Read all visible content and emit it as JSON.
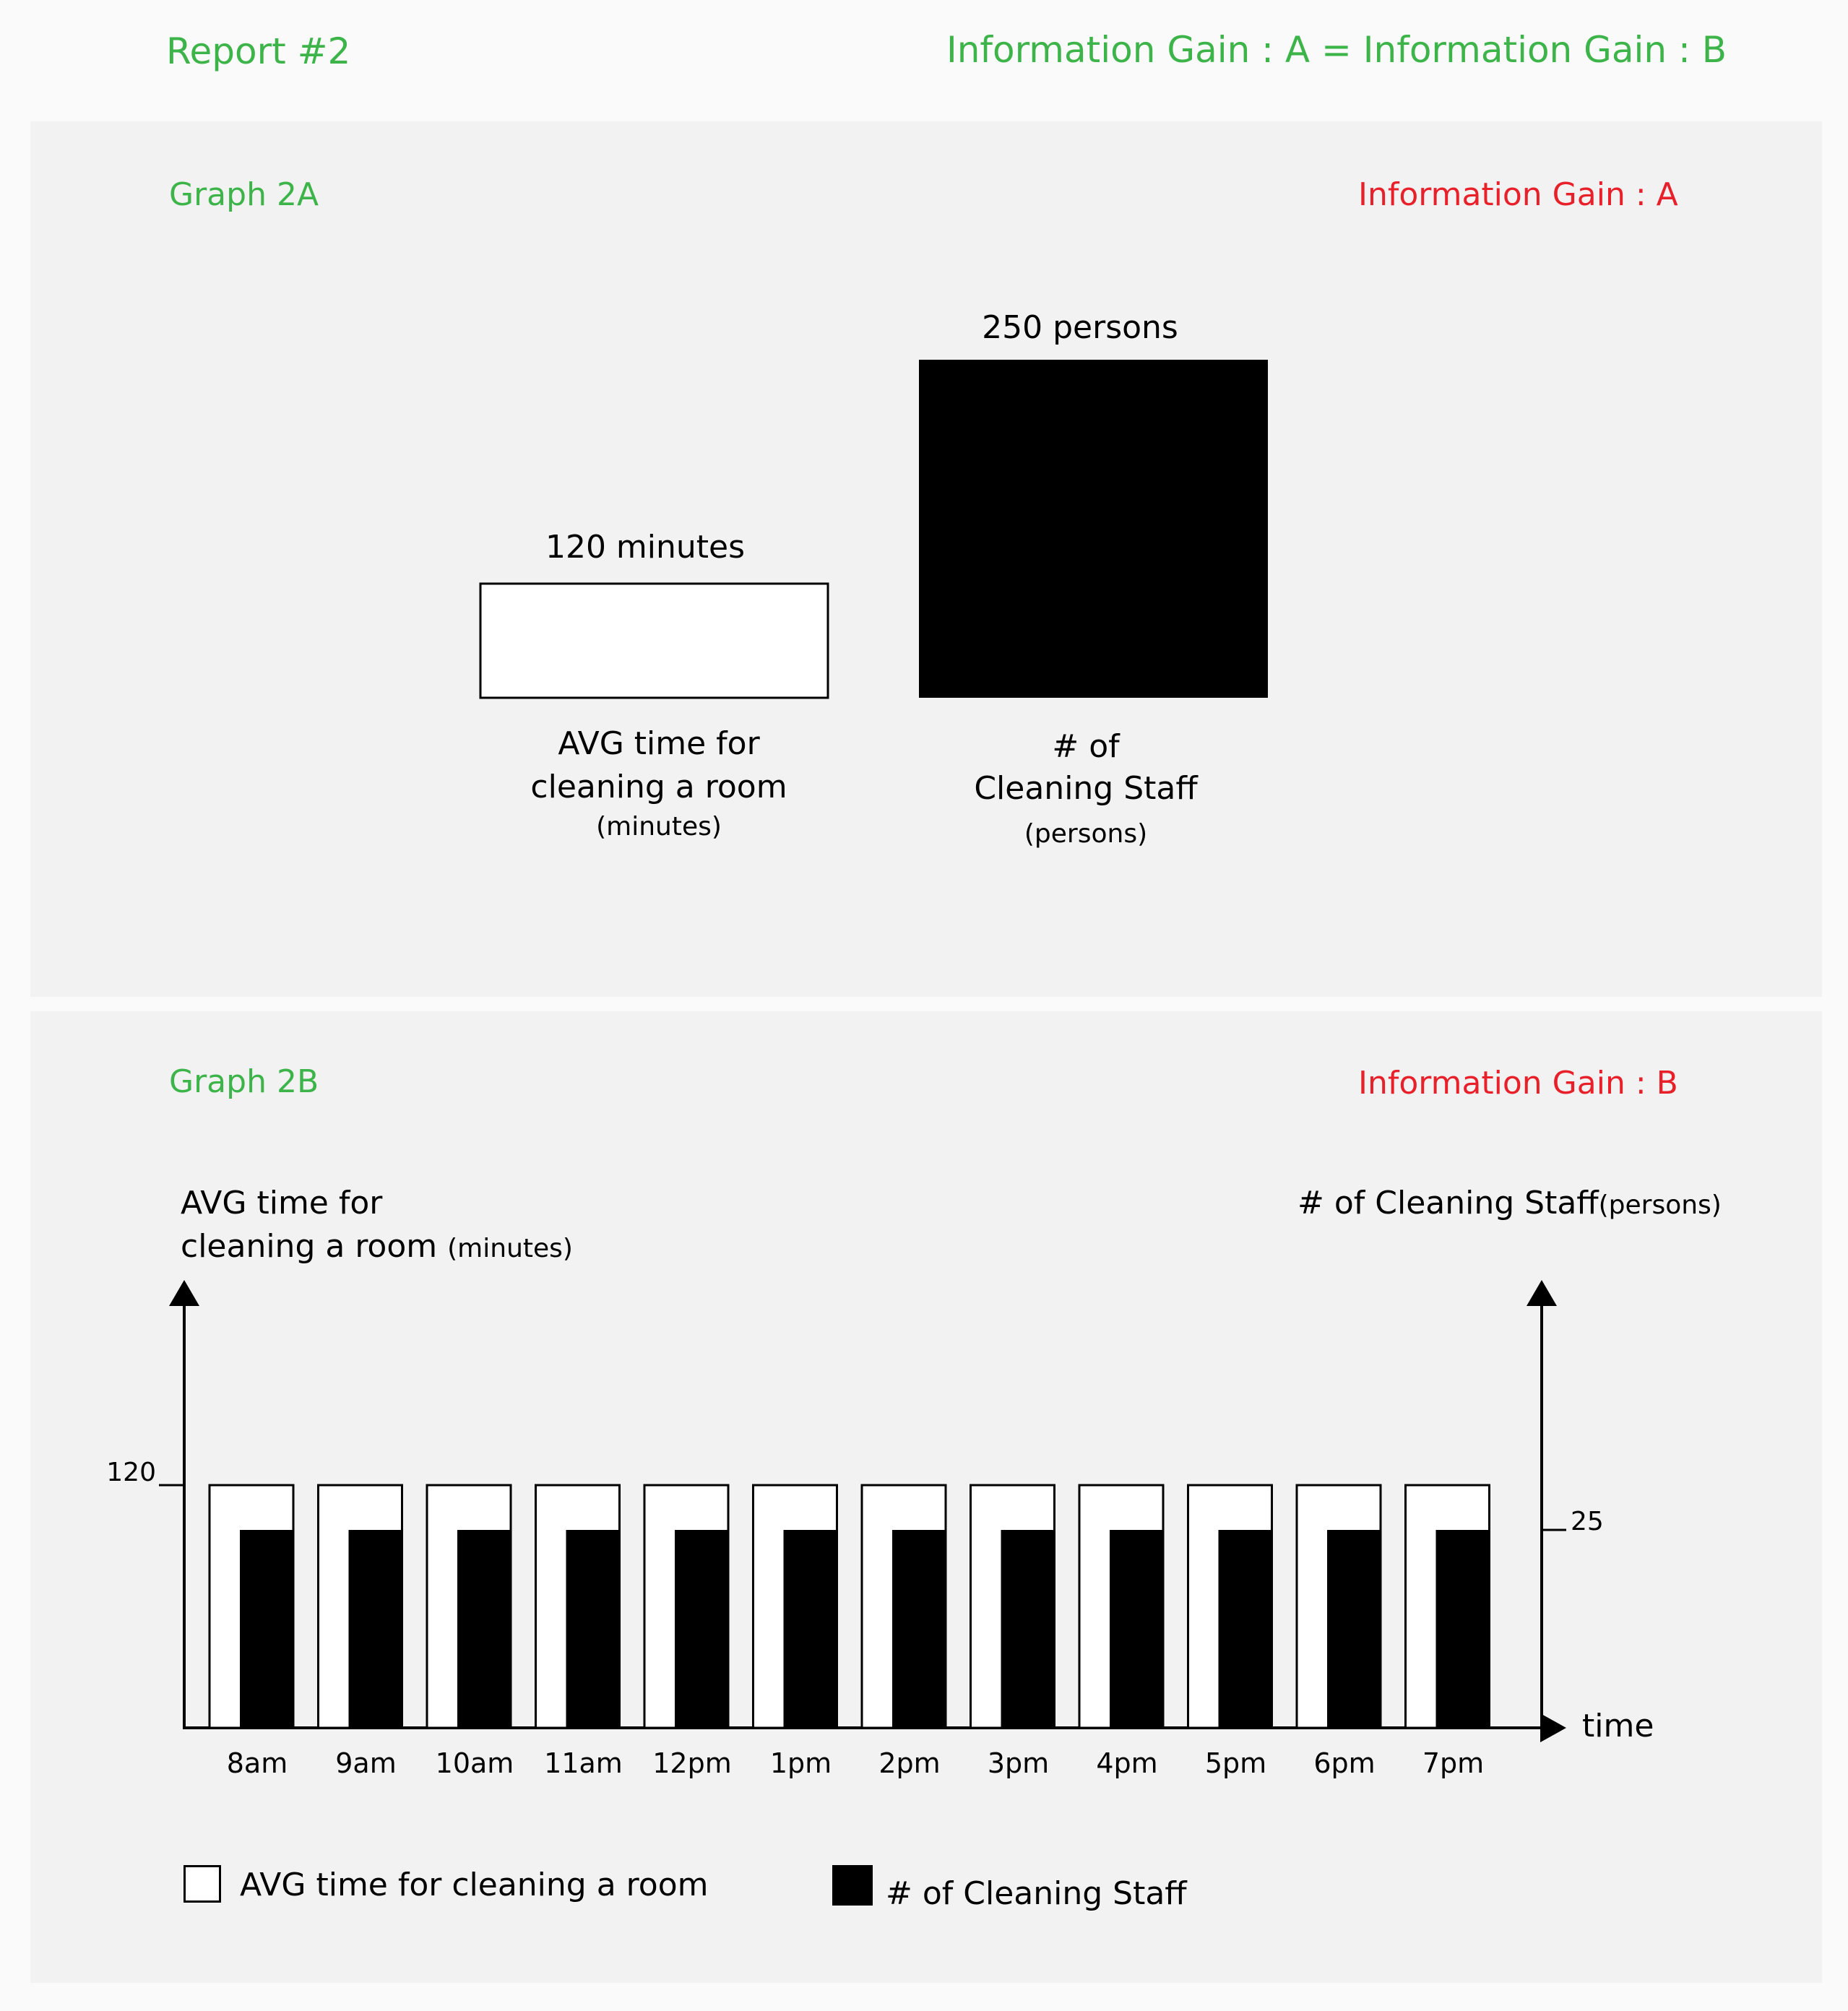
{
  "header": {
    "report_title": "Report #2",
    "equation": "Information Gain : A = Information Gain : B"
  },
  "graph_a": {
    "title": "Graph 2A",
    "gain_label": "Information Gain : A",
    "avg_time": {
      "value_label": "120 minutes",
      "label_line1": "AVG time for",
      "label_line2": "cleaning a room",
      "unit": "(minutes)"
    },
    "staff": {
      "value_label": "250 persons",
      "label_line1": "# of",
      "label_line2": "Cleaning Staff",
      "unit": "(persons)"
    }
  },
  "graph_b": {
    "title": "Graph  2B",
    "gain_label": "Information Gain : B",
    "left_axis": {
      "label_line1": "AVG time for",
      "label_line2": "cleaning a room",
      "unit": "(minutes)"
    },
    "right_axis": {
      "label": "# of Cleaning Staff",
      "unit": "(persons)"
    },
    "x_axis_label": "time",
    "legend": {
      "avg_time": "AVG time for cleaning a room",
      "staff": "# of Cleaning Staff"
    }
  },
  "colors": {
    "title_green": "#3db449",
    "gain_red": "#e8202a",
    "panel_bg": "#f2f2f2",
    "bar_black": "#000000",
    "bar_white": "#ffffff"
  },
  "chart_data": [
    {
      "type": "bar",
      "title": "Graph 2A",
      "categories": [
        "AVG time for cleaning a room (minutes)",
        "# of Cleaning Staff (persons)"
      ],
      "values": [
        120,
        250
      ],
      "data_labels": [
        "120 minutes",
        "250 persons"
      ],
      "units": [
        "minutes",
        "persons"
      ]
    },
    {
      "type": "bar",
      "title": "Graph  2B",
      "x": [
        "8am",
        "9am",
        "10am",
        "11am",
        "12pm",
        "1pm",
        "2pm",
        "3pm",
        "4pm",
        "5pm",
        "6pm",
        "7pm"
      ],
      "xlabel": "time",
      "ylabel_left": "AVG time for cleaning a room (minutes)",
      "ylabel_right": "# of Cleaning Staff(persons)",
      "y_left_ticks": [
        120
      ],
      "y_right_ticks": [
        25
      ],
      "series": [
        {
          "name": "AVG time for cleaning a room",
          "axis": "left",
          "color": "#ffffff",
          "values": [
            120,
            120,
            120,
            120,
            120,
            120,
            120,
            120,
            120,
            120,
            120,
            120
          ]
        },
        {
          "name": "# of Cleaning Staff",
          "axis": "right",
          "color": "#000000",
          "values": [
            25,
            25,
            25,
            25,
            25,
            25,
            25,
            25,
            25,
            25,
            25,
            25
          ]
        }
      ],
      "legend": "bottom",
      "grid": false
    }
  ]
}
